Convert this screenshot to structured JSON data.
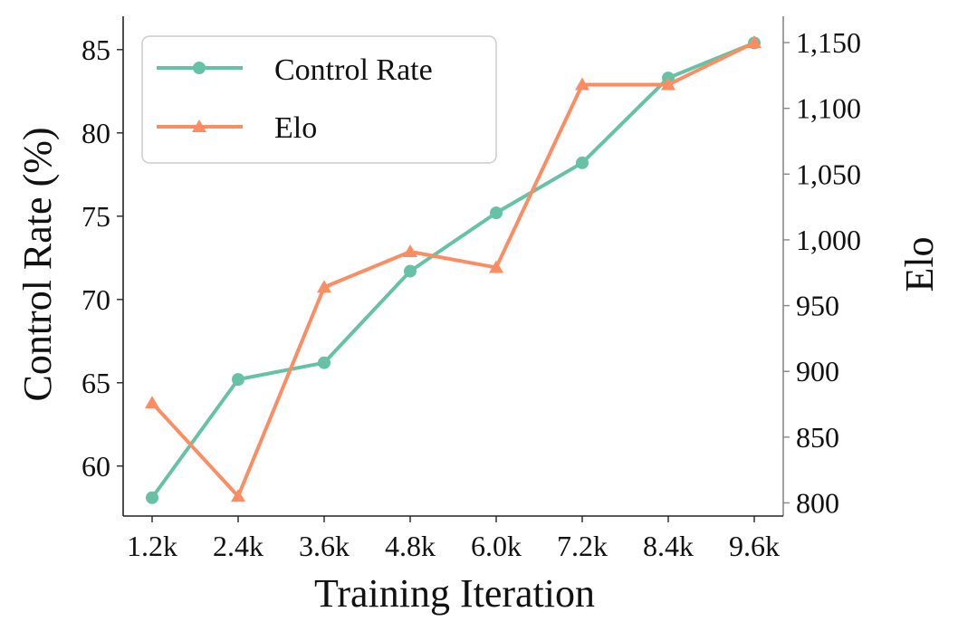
{
  "chart_data": {
    "type": "line",
    "categories": [
      "1.2k",
      "2.4k",
      "3.6k",
      "4.8k",
      "6.0k",
      "7.2k",
      "8.4k",
      "9.6k"
    ],
    "xlabel": "Training Iteration",
    "ylabel_left": "Control Rate (%)",
    "ylabel_right": "Elo",
    "ylim_left": [
      57,
      87
    ],
    "ylim_right": [
      790,
      1170
    ],
    "yticks_left": [
      "60",
      "65",
      "70",
      "75",
      "80",
      "85"
    ],
    "yticks_right": [
      "800",
      "850",
      "900",
      "950",
      "1,000",
      "1,050",
      "1,100",
      "1,150"
    ],
    "grid": false,
    "legend_position": "top-left",
    "series": [
      {
        "name": "Control Rate",
        "axis": "left",
        "marker": "circle",
        "color": "#66c2a5",
        "values": [
          58.1,
          65.2,
          66.2,
          71.7,
          75.2,
          78.2,
          83.3,
          85.4
        ]
      },
      {
        "name": "Elo",
        "axis": "right",
        "marker": "triangle",
        "color": "#fc8d62",
        "values": [
          876,
          805,
          964,
          991,
          979,
          1118,
          1118,
          1150
        ]
      }
    ]
  }
}
